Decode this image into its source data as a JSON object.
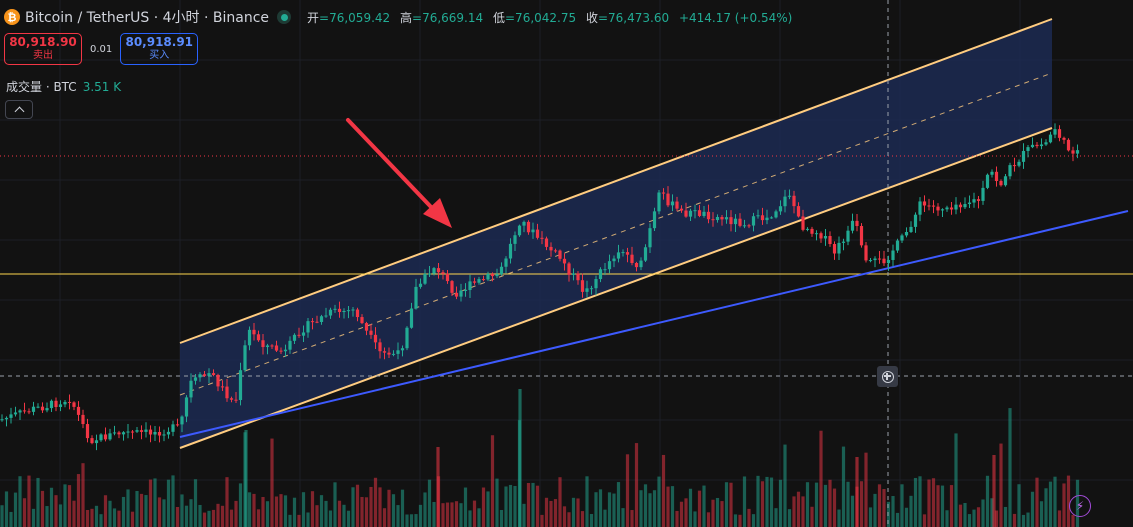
{
  "header": {
    "coin_glyph": "₿",
    "title": "Bitcoin / TetherUS · 4小时 · Binance",
    "live_indicator_icon": "live-dot-icon",
    "ohlc": {
      "open_label": "开",
      "open_value": "=76,059.42",
      "high_label": "高",
      "high_value": "=76,669.14",
      "low_label": "低",
      "low_value": "=76,042.75",
      "close_label": "收",
      "close_value": "=76,473.60",
      "change": "+414.17 (+0.54%)"
    }
  },
  "trade": {
    "sell_price": "80,918.90",
    "sell_label": "卖出",
    "spread": "0.01",
    "buy_price": "80,918.91",
    "buy_label": "买入"
  },
  "volume_legend": {
    "name": "成交量 · BTC",
    "value": "3.51 K"
  },
  "colors": {
    "up": "#22ab94",
    "down": "#f23645",
    "channel_line": "#ffcc80",
    "channel_fill": "#1c2a52",
    "trend_line": "#3d5afe",
    "horizontal_line": "#ffd54f",
    "arrow": "#f23645",
    "background": "#121212"
  },
  "icons": {
    "collapse": "chevron-up-icon",
    "crosshair_add": "plus-circle-icon",
    "bolt": "lightning-icon"
  }
}
